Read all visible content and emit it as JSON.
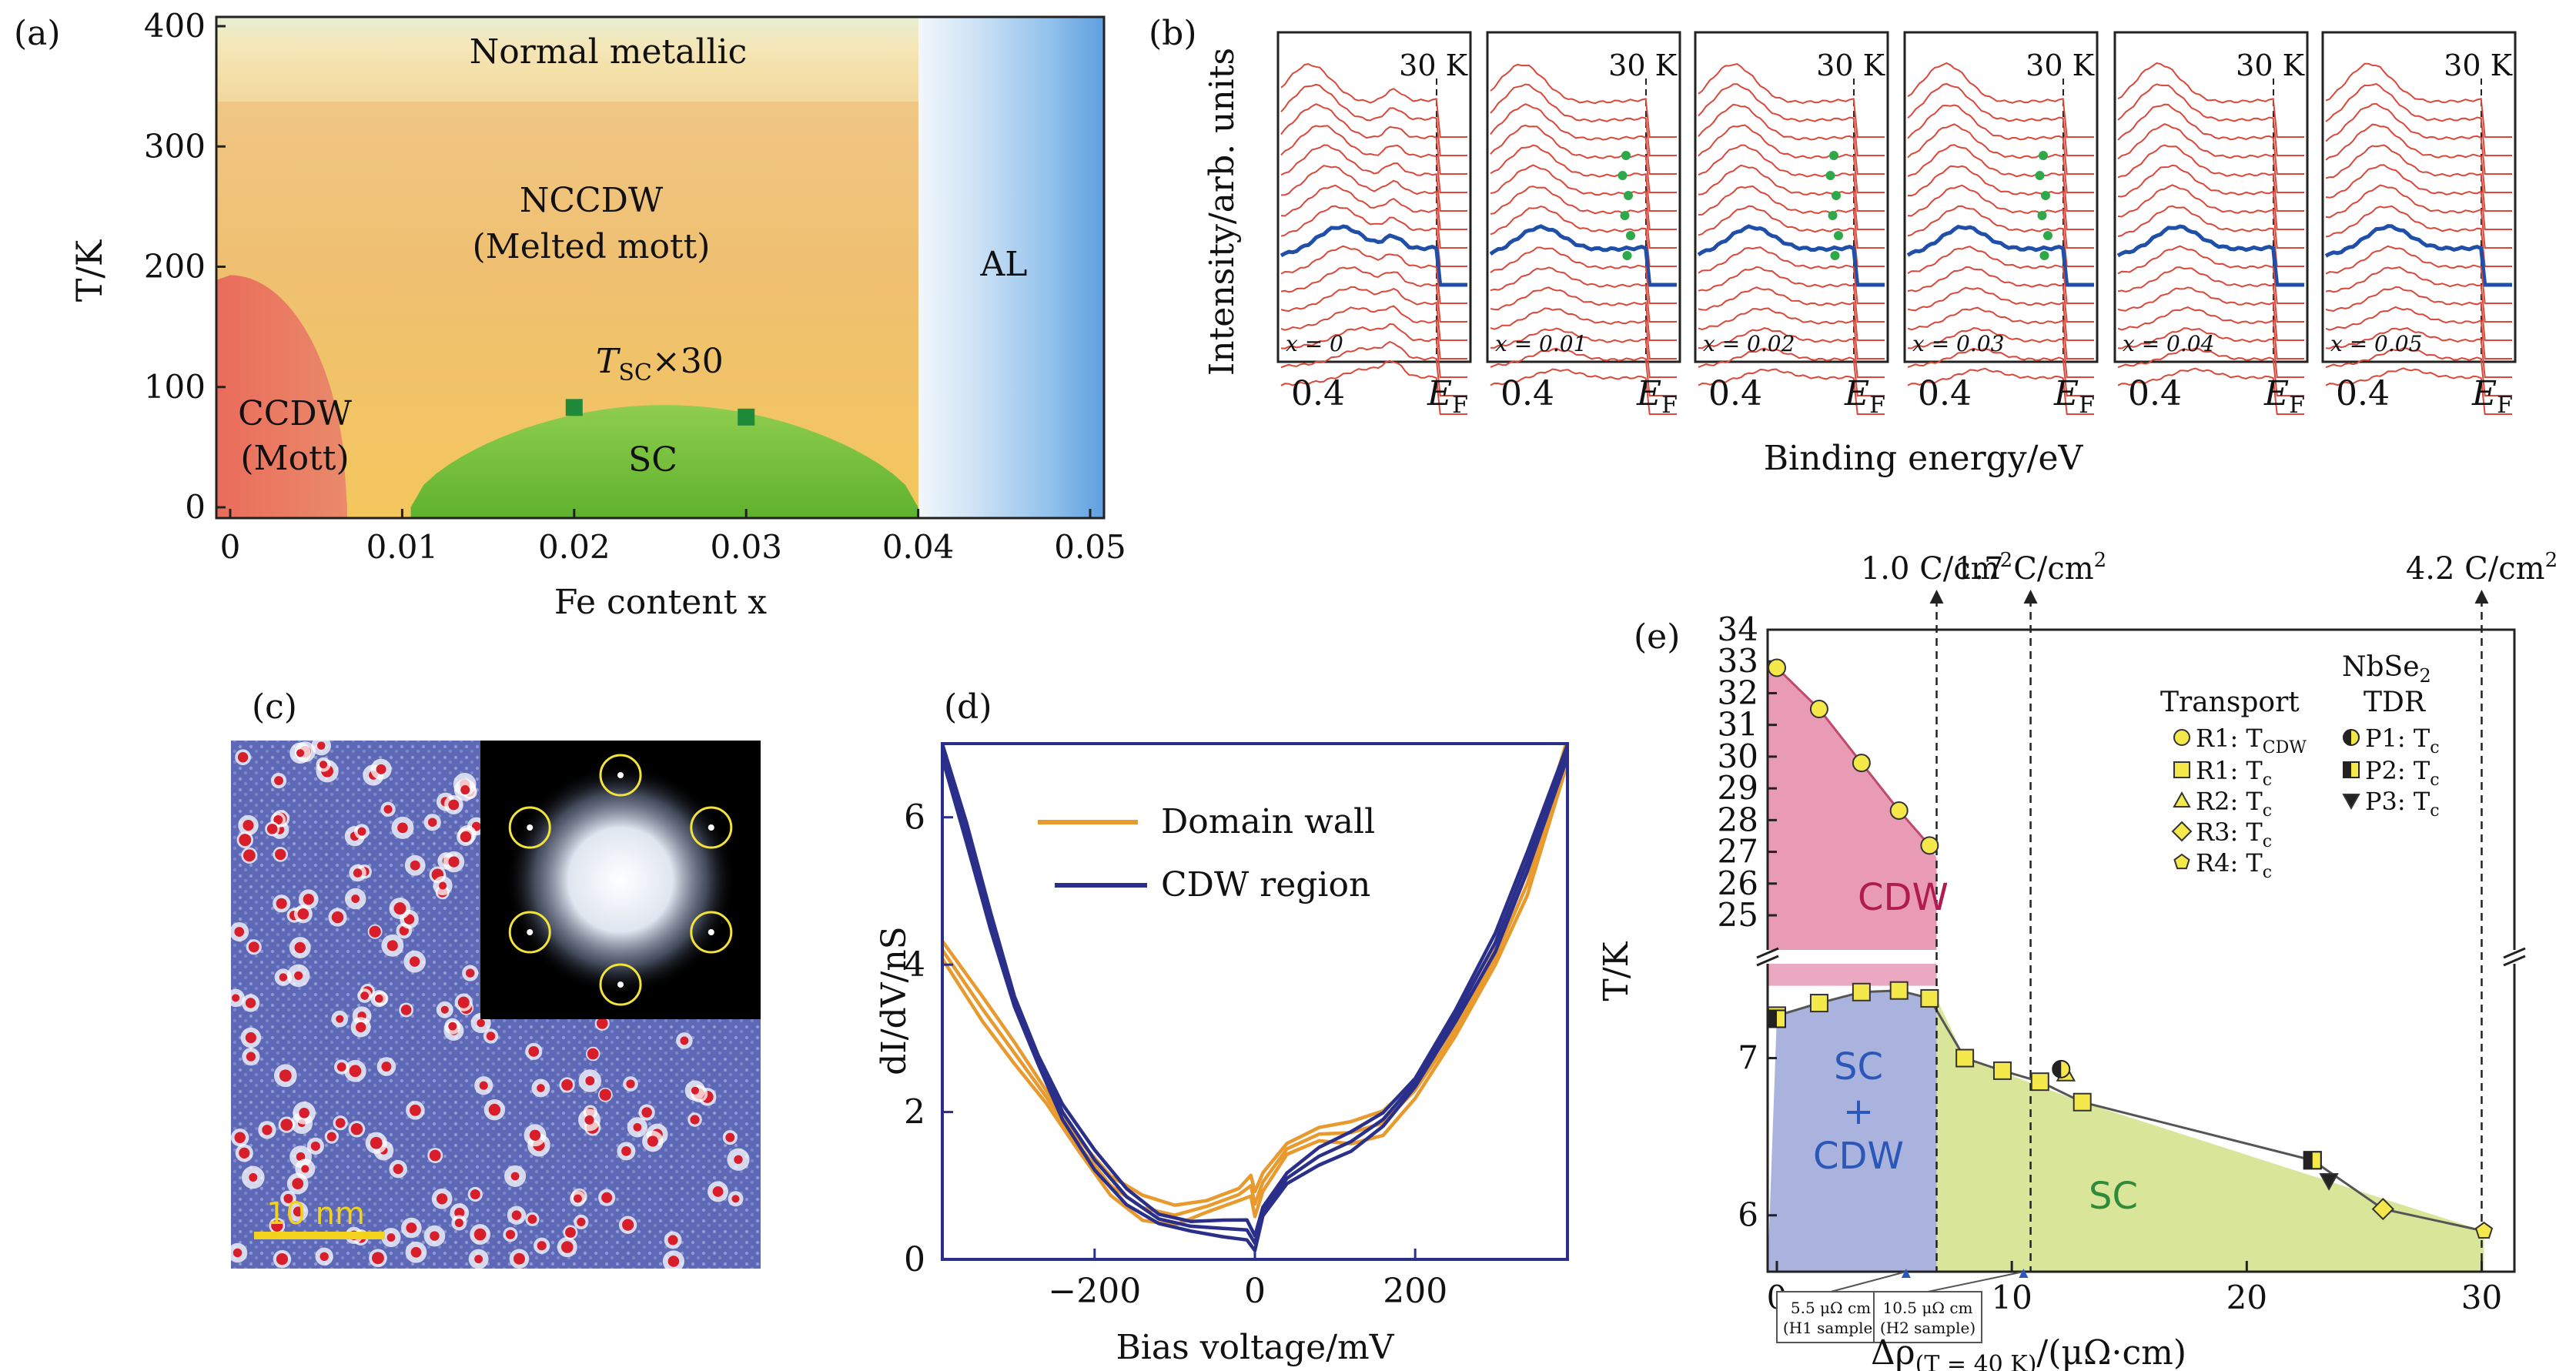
{
  "panels": {
    "a": {
      "tag": "(a)",
      "chart_data": {
        "type": "phase-diagram",
        "xlabel": "Fe content x",
        "ylabel": "T/K",
        "xlim": [
          0,
          0.05
        ],
        "ylim": [
          0,
          400
        ],
        "xticks": [
          "0",
          "0.01",
          "0.02",
          "0.03",
          "0.04",
          "0.05"
        ],
        "xtick_values": [
          0,
          0.01,
          0.02,
          0.03,
          0.04,
          0.05
        ],
        "yticks": [
          "0",
          "100",
          "200",
          "300",
          "400"
        ],
        "ytick_values": [
          0,
          100,
          200,
          300,
          400
        ],
        "regions": {
          "normal": "Normal metallic",
          "nccdw_1": "NCCDW",
          "nccdw_2": "(Melted mott)",
          "ccdw_1": "CCDW",
          "ccdw_2": "(Mott)",
          "sc": "SC",
          "al": "AL",
          "tsc_label": "T",
          "tsc_sub": "SC",
          "tsc_tail": "×30"
        },
        "tsc_points": [
          {
            "x": 0.02,
            "y": 83
          },
          {
            "x": 0.03,
            "y": 75
          }
        ],
        "ccdw_dome_peak": {
          "x": 0,
          "y": 193
        },
        "sc_dome": {
          "x_start": 0.0105,
          "x_end": 0.04,
          "peak": 85
        },
        "al_boundary_x": 0.04,
        "colors": {
          "ccdw": "#e8735a",
          "sc": "#7cc23d",
          "nccdw": "#efc46e",
          "al": "#7fb4e8",
          "tsc": "#1f8a3a"
        }
      }
    },
    "b": {
      "tag": "(b)",
      "ylabel": "Intensity/arb. units",
      "xlabel": "Binding energy/eV",
      "temp_label": "30 K",
      "tick_04": "0.4",
      "tick_ef_main": "E",
      "tick_ef_sub": "F",
      "chart_data": {
        "type": "line",
        "subpanels": [
          {
            "label": "x = 0"
          },
          {
            "label": "x = 0.01"
          },
          {
            "label": "x = 0.02"
          },
          {
            "label": "x = 0.03"
          },
          {
            "label": "x = 0.04"
          },
          {
            "label": "x = 0.05"
          }
        ],
        "curves_per_panel": 16,
        "highlight_color": "#1f4fa8",
        "curve_color": "#d9483b",
        "marker_color": "#2fa84a"
      }
    },
    "c": {
      "tag": "(c)",
      "scalebar": "10 nm"
    },
    "d": {
      "tag": "(d)",
      "chart_data": {
        "type": "line",
        "xlabel": "Bias voltage/mV",
        "ylabel": "dI/dV/nS",
        "xlim": [
          -390,
          390
        ],
        "ylim": [
          0,
          7
        ],
        "xticks": [
          "−200",
          "0",
          "200"
        ],
        "xtick_values": [
          -200,
          0,
          200
        ],
        "yticks": [
          "0",
          "2",
          "4",
          "6"
        ],
        "ytick_values": [
          0,
          2,
          4,
          6
        ],
        "series": [
          {
            "name": "Domain wall",
            "color": "#e89a2e",
            "x": [
              -390,
              -340,
              -300,
              -260,
              -220,
              -180,
              -140,
              -100,
              -60,
              -20,
              -5,
              0,
              10,
              40,
              80,
              120,
              160,
              200,
              250,
              300,
              340,
              390
            ],
            "y": [
              4.2,
              3.4,
              2.8,
              2.2,
              1.55,
              1.0,
              0.7,
              0.6,
              0.72,
              0.88,
              1.0,
              0.75,
              1.05,
              1.5,
              1.7,
              1.72,
              1.85,
              2.3,
              3.1,
              4.1,
              5.1,
              6.9
            ]
          },
          {
            "name": "CDW region",
            "color": "#2a2f8a",
            "x": [
              -390,
              -360,
              -330,
              -300,
              -270,
              -240,
              -200,
              -160,
              -120,
              -80,
              -40,
              -10,
              0,
              10,
              40,
              80,
              120,
              160,
              200,
              250,
              300,
              340,
              390
            ],
            "y": [
              6.9,
              5.8,
              4.6,
              3.5,
              2.7,
              2.0,
              1.35,
              0.85,
              0.55,
              0.45,
              0.42,
              0.4,
              0.22,
              0.65,
              1.1,
              1.4,
              1.6,
              1.9,
              2.4,
              3.3,
              4.3,
              5.4,
              6.9
            ]
          }
        ]
      }
    },
    "e": {
      "tag": "(e)",
      "dose_labels": [
        "1.0 C/cm",
        "1.7 C/cm",
        "4.2 C/cm"
      ],
      "dose_sup": "2",
      "sample_notes": [
        {
          "line1": "5.5 μΩ cm",
          "line2": "(H1 sample)"
        },
        {
          "line1": "10.5 μΩ cm",
          "line2": "(H2 sample)"
        }
      ],
      "legend": {
        "title": "NbSe",
        "title_sub": "2",
        "col1": "Transport",
        "col2": "TDR",
        "items": [
          {
            "key": "R1",
            "sym": "circle",
            "label": "R1: T",
            "sub": "CDW"
          },
          {
            "key": "R1b",
            "sym": "square",
            "label": "R1: T",
            "sub": "c"
          },
          {
            "key": "R2",
            "sym": "triangle",
            "label": "R2: T",
            "sub": "c"
          },
          {
            "key": "R3",
            "sym": "diamond",
            "label": "R3: T",
            "sub": "c"
          },
          {
            "key": "R4",
            "sym": "pentagon",
            "label": "R4: T",
            "sub": "c"
          },
          {
            "key": "P1",
            "sym": "halfcircle",
            "label": "P1: T",
            "sub": "c"
          },
          {
            "key": "P2",
            "sym": "halfsquare",
            "label": "P2: T",
            "sub": "c"
          },
          {
            "key": "P3",
            "sym": "downtriangle",
            "label": "P3: T",
            "sub": "c"
          }
        ]
      },
      "regions": {
        "cdw": "CDW",
        "sccdw_1": "SC",
        "sccdw_2": "+",
        "sccdw_3": "CDW",
        "sc": "SC"
      },
      "chart_data": {
        "type": "scatter",
        "xlabel_main": "Δρ",
        "xlabel_sub": "(T = 40 K)",
        "xlabel_tail": "/(μΩ·cm)",
        "ylabel": "T/K",
        "xlim": [
          0,
          31
        ],
        "ylim_upper": [
          24.2,
          34
        ],
        "ylim_lower": [
          5.7,
          7.6
        ],
        "xticks": [
          "0",
          "10",
          "20",
          "30"
        ],
        "xtick_values": [
          0,
          10,
          20,
          30
        ],
        "yticks_upper": [
          "25",
          "26",
          "27",
          "28",
          "29",
          "30",
          "31",
          "32",
          "33",
          "34"
        ],
        "ytick_values_upper": [
          25,
          26,
          27,
          28,
          29,
          30,
          31,
          32,
          33,
          34
        ],
        "yticks_lower": [
          "6",
          "7"
        ],
        "ytick_values_lower": [
          6,
          7
        ],
        "dose_lines_x": [
          6.8,
          10.8,
          30.0
        ],
        "note_x": [
          5.5,
          10.5
        ],
        "series": [
          {
            "name": "R1: TCDW",
            "symbol": "circle",
            "x": [
              0,
              1.8,
              3.6,
              5.2,
              6.5
            ],
            "y": [
              32.8,
              31.5,
              29.8,
              28.3,
              27.2
            ]
          },
          {
            "name": "R1: Tc",
            "symbol": "square",
            "x": [
              0,
              1.8,
              3.6,
              5.2,
              6.5,
              8.0,
              9.6,
              11.2,
              13.0,
              22.8
            ],
            "y": [
              7.27,
              7.35,
              7.42,
              7.43,
              7.38,
              7.0,
              6.92,
              6.85,
              6.72,
              6.35
            ]
          },
          {
            "name": "R2: Tc",
            "symbol": "triangle",
            "x": [
              12.3
            ],
            "y": [
              6.9
            ]
          },
          {
            "name": "R3: Tc",
            "symbol": "diamond",
            "x": [
              25.8
            ],
            "y": [
              6.04
            ]
          },
          {
            "name": "R4: Tc",
            "symbol": "pentagon",
            "x": [
              30.1
            ],
            "y": [
              5.9
            ]
          },
          {
            "name": "P1: Tc",
            "symbol": "halfcircle",
            "x": [
              12.1
            ],
            "y": [
              6.93
            ]
          },
          {
            "name": "P2: Tc",
            "symbol": "halfsquare",
            "x": [
              0,
              22.8
            ],
            "y": [
              7.25,
              6.35
            ]
          },
          {
            "name": "P3: Tc",
            "symbol": "downtriangle",
            "x": [
              23.5
            ],
            "y": [
              6.22
            ]
          }
        ],
        "colors": {
          "cdw": "#e58aa8",
          "sccdw": "#aab3dd",
          "sc": "#d9e69a",
          "marker": "#f4e84a"
        }
      }
    }
  }
}
